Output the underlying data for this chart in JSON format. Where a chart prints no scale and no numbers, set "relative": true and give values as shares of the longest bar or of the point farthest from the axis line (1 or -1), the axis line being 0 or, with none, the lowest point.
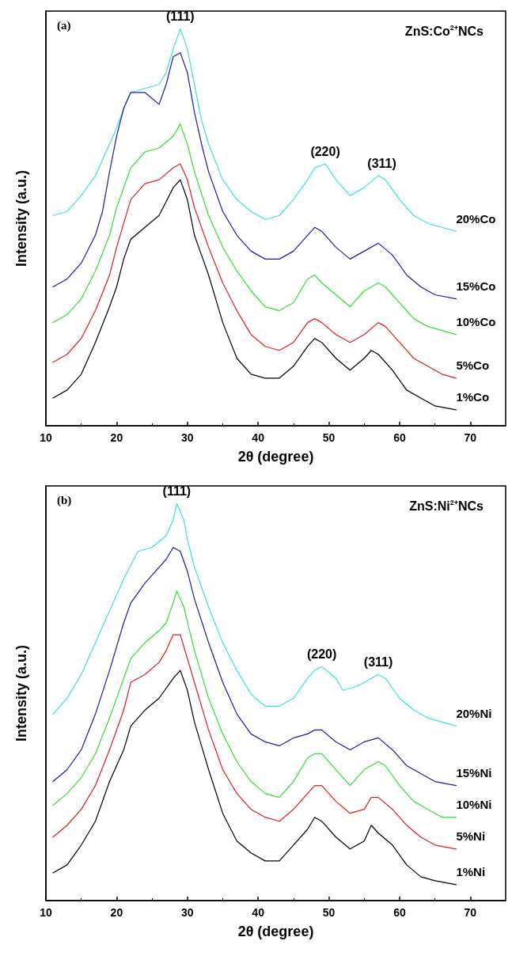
{
  "chart_data": [
    {
      "type": "line",
      "relative": true,
      "xlabel": "2θ (degree)",
      "ylabel": "Intensity (a.u.)",
      "xlim": [
        10,
        75
      ],
      "xticks": [
        10,
        20,
        30,
        40,
        50,
        60,
        70
      ],
      "grid": false,
      "legend": false,
      "marker": "none",
      "line_style": "solid",
      "annotations": [
        "(a)",
        "ZnS:Co$^{2+}$NCs",
        {
          "text": "(111)",
          "x": 29,
          "y": 1
        },
        {
          "text": "(220)",
          "x": 49.5,
          "y": 0.66
        },
        {
          "text": "(311)",
          "x": 57.5,
          "y": 0.63
        }
      ],
      "series": [
        {
          "name": "20%Co",
          "color": "#3fe0e0",
          "x": [
            11,
            13,
            15,
            17,
            19,
            20,
            21,
            22,
            24,
            26,
            27,
            28,
            29,
            30,
            31,
            32,
            33,
            35,
            37,
            39,
            41,
            43,
            45,
            47,
            48,
            49.5,
            51,
            53,
            55,
            57,
            58,
            60,
            62,
            64,
            66,
            68
          ],
          "values": [
            0.53,
            0.54,
            0.58,
            0.63,
            0.71,
            0.75,
            0.8,
            0.84,
            0.85,
            0.86,
            0.89,
            0.95,
            1,
            0.95,
            0.86,
            0.77,
            0.71,
            0.62,
            0.57,
            0.54,
            0.52,
            0.53,
            0.57,
            0.62,
            0.65,
            0.66,
            0.62,
            0.58,
            0.6,
            0.63,
            0.62,
            0.57,
            0.53,
            0.51,
            0.5,
            0.49
          ]
        },
        {
          "name": "15%Co",
          "color": "#1c1caa",
          "x": [
            11,
            13,
            15,
            17,
            18,
            19,
            20,
            21,
            22,
            24,
            26,
            27,
            28,
            29,
            30,
            31,
            32,
            33,
            35,
            37,
            39,
            41,
            43,
            45,
            47,
            48,
            49,
            51,
            53,
            55,
            57,
            59,
            61,
            63,
            65,
            68
          ],
          "values": [
            0.35,
            0.37,
            0.41,
            0.48,
            0.54,
            0.64,
            0.73,
            0.8,
            0.84,
            0.84,
            0.81,
            0.86,
            0.93,
            0.94,
            0.89,
            0.79,
            0.71,
            0.64,
            0.54,
            0.48,
            0.44,
            0.42,
            0.42,
            0.44,
            0.48,
            0.5,
            0.49,
            0.45,
            0.42,
            0.44,
            0.46,
            0.43,
            0.38,
            0.35,
            0.33,
            0.32
          ]
        },
        {
          "name": "10%Co",
          "color": "#33e033",
          "x": [
            11,
            13,
            15,
            17,
            19,
            20,
            22,
            24,
            26,
            28,
            29,
            30,
            31,
            33,
            35,
            37,
            39,
            41,
            43,
            45,
            47,
            48,
            49,
            51,
            53,
            55,
            57,
            58,
            60,
            62,
            64,
            66,
            68
          ],
          "values": [
            0.26,
            0.28,
            0.32,
            0.39,
            0.48,
            0.55,
            0.65,
            0.69,
            0.7,
            0.73,
            0.76,
            0.71,
            0.64,
            0.53,
            0.45,
            0.39,
            0.34,
            0.3,
            0.29,
            0.31,
            0.37,
            0.38,
            0.36,
            0.33,
            0.3,
            0.34,
            0.36,
            0.35,
            0.31,
            0.27,
            0.25,
            0.24,
            0.23
          ]
        },
        {
          "name": "5%Co",
          "color": "#e02020",
          "x": [
            11,
            13,
            15,
            17,
            19,
            20,
            22,
            24,
            26,
            28,
            29,
            30,
            31,
            33,
            35,
            37,
            39,
            41,
            43,
            45,
            47,
            48,
            49,
            51,
            53,
            55,
            57,
            58,
            60,
            62,
            64,
            66,
            68
          ],
          "values": [
            0.16,
            0.18,
            0.22,
            0.29,
            0.38,
            0.45,
            0.57,
            0.61,
            0.62,
            0.65,
            0.66,
            0.62,
            0.55,
            0.45,
            0.36,
            0.29,
            0.23,
            0.2,
            0.19,
            0.21,
            0.26,
            0.27,
            0.26,
            0.23,
            0.21,
            0.23,
            0.26,
            0.25,
            0.21,
            0.17,
            0.15,
            0.13,
            0.12
          ]
        },
        {
          "name": "1%Co",
          "color": "#000000",
          "x": [
            11,
            13,
            15,
            17,
            19,
            20,
            21,
            22,
            24,
            26,
            28,
            29,
            30,
            31,
            33,
            35,
            37,
            39,
            41,
            43,
            45,
            47,
            48,
            49,
            51,
            53,
            55,
            56,
            57,
            59,
            61,
            63,
            65,
            68
          ],
          "values": [
            0.07,
            0.09,
            0.13,
            0.21,
            0.3,
            0.35,
            0.42,
            0.47,
            0.5,
            0.53,
            0.6,
            0.62,
            0.57,
            0.48,
            0.38,
            0.26,
            0.17,
            0.13,
            0.12,
            0.12,
            0.15,
            0.2,
            0.22,
            0.21,
            0.17,
            0.14,
            0.17,
            0.19,
            0.18,
            0.14,
            0.09,
            0.07,
            0.05,
            0.04
          ]
        }
      ]
    },
    {
      "type": "line",
      "relative": true,
      "xlabel": "2θ (degree)",
      "ylabel": "Intensity (a.u.)",
      "xlim": [
        10,
        75
      ],
      "xticks": [
        10,
        20,
        30,
        40,
        50,
        60,
        70
      ],
      "grid": false,
      "legend": false,
      "marker": "none",
      "line_style": "solid",
      "annotations": [
        "(b)",
        "ZnS:Ni$^{2+}$NCs",
        {
          "text": "(111)",
          "x": 28.5,
          "y": 1
        },
        {
          "text": "(220)",
          "x": 49,
          "y": 0.59
        },
        {
          "text": "(311)",
          "x": 57,
          "y": 0.57
        }
      ],
      "series": [
        {
          "name": "20%Ni",
          "color": "#3fe0e0",
          "x": [
            11,
            13,
            15,
            17,
            19,
            21,
            23,
            25,
            27,
            28,
            28.5,
            29.5,
            30,
            31,
            33,
            35,
            37,
            39,
            41,
            43,
            45,
            47,
            48,
            49,
            51,
            52,
            54,
            56,
            57,
            58,
            60,
            62,
            64,
            66,
            68
          ],
          "values": [
            0.47,
            0.51,
            0.57,
            0.65,
            0.73,
            0.81,
            0.88,
            0.89,
            0.92,
            0.96,
            1,
            0.96,
            0.91,
            0.84,
            0.74,
            0.65,
            0.58,
            0.52,
            0.49,
            0.49,
            0.51,
            0.56,
            0.58,
            0.59,
            0.56,
            0.53,
            0.54,
            0.56,
            0.57,
            0.56,
            0.51,
            0.48,
            0.46,
            0.45,
            0.44
          ]
        },
        {
          "name": "15%Ni",
          "color": "#1c1caa",
          "x": [
            11,
            13,
            15,
            17,
            19,
            21,
            22,
            24,
            26,
            27,
            28,
            29,
            30,
            31,
            33,
            35,
            37,
            39,
            41,
            43,
            45,
            47,
            48,
            49,
            51,
            53,
            55,
            57,
            59,
            61,
            63,
            65,
            68
          ],
          "values": [
            0.3,
            0.33,
            0.38,
            0.47,
            0.58,
            0.7,
            0.75,
            0.8,
            0.84,
            0.86,
            0.89,
            0.88,
            0.83,
            0.76,
            0.65,
            0.55,
            0.47,
            0.42,
            0.4,
            0.39,
            0.41,
            0.42,
            0.43,
            0.43,
            0.4,
            0.38,
            0.4,
            0.41,
            0.38,
            0.34,
            0.32,
            0.3,
            0.29
          ]
        },
        {
          "name": "10%Ni",
          "color": "#33e033",
          "x": [
            11,
            13,
            15,
            17,
            19,
            21,
            22,
            24,
            26,
            27,
            28,
            28.5,
            29.5,
            31,
            33,
            35,
            37,
            39,
            41,
            43,
            45,
            47,
            48,
            49,
            51,
            53,
            55,
            57,
            58,
            60,
            62,
            64,
            66,
            68
          ],
          "values": [
            0.24,
            0.27,
            0.31,
            0.37,
            0.46,
            0.56,
            0.61,
            0.65,
            0.68,
            0.7,
            0.75,
            0.78,
            0.74,
            0.63,
            0.51,
            0.42,
            0.35,
            0.3,
            0.27,
            0.26,
            0.3,
            0.36,
            0.37,
            0.37,
            0.33,
            0.29,
            0.33,
            0.35,
            0.34,
            0.29,
            0.25,
            0.23,
            0.21,
            0.21
          ]
        },
        {
          "name": "5%Ni",
          "color": "#e02020",
          "x": [
            11,
            13,
            15,
            17,
            19,
            21,
            22,
            24,
            26,
            27,
            28,
            29,
            30,
            31,
            33,
            35,
            37,
            39,
            41,
            43,
            45,
            47,
            48,
            49,
            51,
            53,
            55,
            56,
            57,
            59,
            61,
            63,
            65,
            68
          ],
          "values": [
            0.16,
            0.19,
            0.23,
            0.29,
            0.38,
            0.48,
            0.55,
            0.57,
            0.6,
            0.63,
            0.67,
            0.67,
            0.61,
            0.55,
            0.43,
            0.33,
            0.27,
            0.23,
            0.21,
            0.2,
            0.23,
            0.27,
            0.29,
            0.29,
            0.25,
            0.22,
            0.23,
            0.26,
            0.26,
            0.23,
            0.19,
            0.16,
            0.14,
            0.13
          ]
        },
        {
          "name": "1%Ni",
          "color": "#000000",
          "x": [
            11,
            13,
            15,
            17,
            19,
            21,
            22,
            24,
            26,
            28,
            29,
            30,
            31,
            33,
            35,
            37,
            39,
            41,
            43,
            45,
            47,
            48,
            49,
            51,
            53,
            55,
            56,
            57,
            59,
            61,
            63,
            65,
            68
          ],
          "values": [
            0.07,
            0.09,
            0.14,
            0.2,
            0.3,
            0.38,
            0.44,
            0.48,
            0.51,
            0.56,
            0.58,
            0.53,
            0.45,
            0.33,
            0.22,
            0.15,
            0.12,
            0.1,
            0.1,
            0.14,
            0.18,
            0.21,
            0.2,
            0.16,
            0.13,
            0.15,
            0.19,
            0.17,
            0.14,
            0.09,
            0.06,
            0.05,
            0.04
          ]
        }
      ]
    }
  ]
}
